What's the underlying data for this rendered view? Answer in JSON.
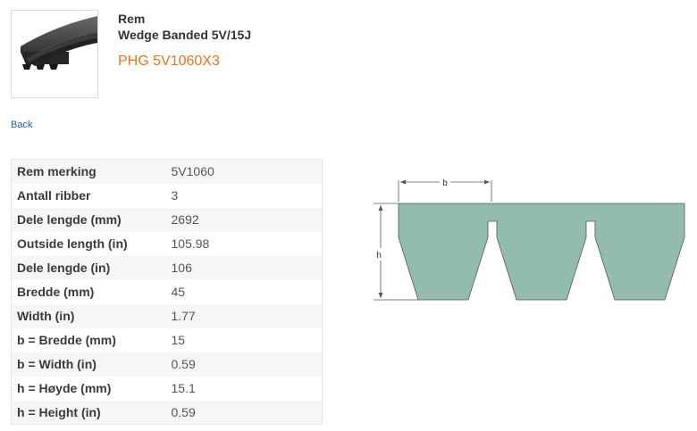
{
  "product": {
    "category": "Rem",
    "type_name": "Wedge Banded 5V/15J",
    "part_number": "PHG 5V1060X3",
    "image_icon": "banded-belt-icon"
  },
  "nav": {
    "back_label": "Back"
  },
  "specs": [
    {
      "label": "Rem merking",
      "value": "5V1060"
    },
    {
      "label": "Antall ribber",
      "value": "3"
    },
    {
      "label": "Dele lengde (mm)",
      "value": "2692"
    },
    {
      "label": "Outside length (in)",
      "value": "105.98"
    },
    {
      "label": "Dele lengde (in)",
      "value": "106"
    },
    {
      "label": "Bredde (mm)",
      "value": "45"
    },
    {
      "label": "Width (in)",
      "value": "1.77"
    },
    {
      "label": "b = Bredde (mm)",
      "value": "15"
    },
    {
      "label": "b = Width (in)",
      "value": "0.59"
    },
    {
      "label": "h = Høyde (mm)",
      "value": "15.1"
    },
    {
      "label": "h = Height (in)",
      "value": "0.59"
    }
  ],
  "diagram": {
    "dim_b_label": "b",
    "dim_h_label": "h",
    "fill_color": "#93bcae",
    "stroke_color": "#555555"
  },
  "colors": {
    "accent": "#e8731f",
    "link": "#1a5fa8"
  }
}
